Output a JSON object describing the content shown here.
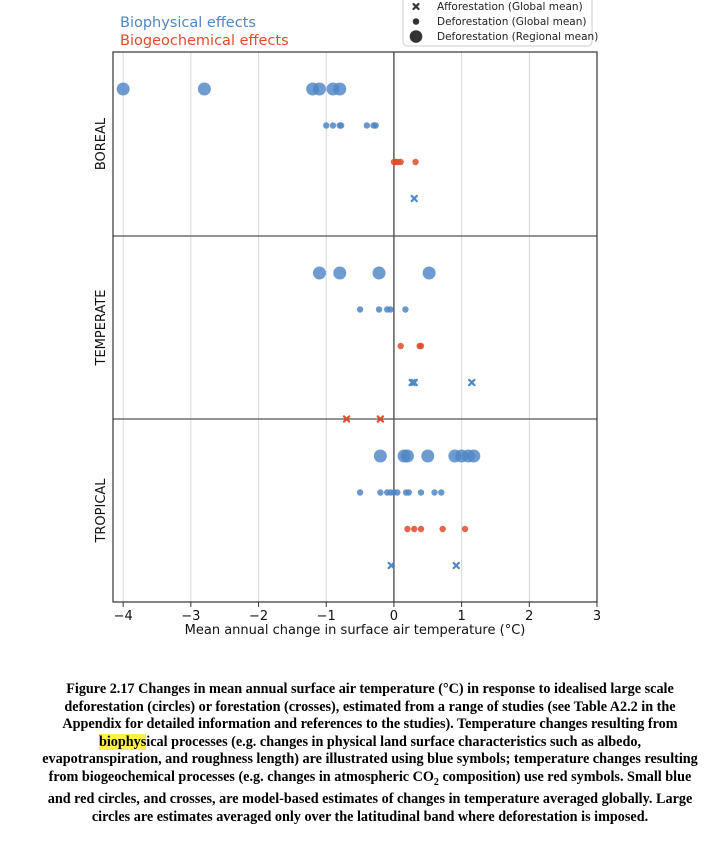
{
  "legend_text": {
    "biophysical": "Biophysical effects",
    "biogeochemical": "Biogeochemical effects"
  },
  "colors": {
    "biophysical": "#4f86c6",
    "biogeochemical": "#e04b2c"
  },
  "chart_data": {
    "type": "scatter",
    "xlabel": "Mean annual change in surface air temperature (°C)",
    "ylabel": "",
    "xlim": [
      -4.15,
      3
    ],
    "xticks": [
      -4,
      -3,
      -2,
      -1,
      0,
      1,
      2,
      3
    ],
    "xtick_labels": [
      "−4",
      "−3",
      "−2",
      "−1",
      "0",
      "1",
      "2",
      "3"
    ],
    "grid": "vertical",
    "legend_placement": "top-right",
    "legend": [
      {
        "marker": "cross",
        "label": "Afforestation (Global mean)"
      },
      {
        "marker": "small-circle",
        "label": "Deforestation (Global mean)"
      },
      {
        "marker": "large-circle",
        "label": "Deforestation (Regional mean)"
      }
    ],
    "panels": [
      {
        "label": "BOREAL",
        "rows": [
          {
            "effect": "biophysical",
            "marker": "large-circle",
            "x": [
              -4.0,
              -2.8,
              -1.2,
              -1.1,
              -0.9,
              -0.8
            ]
          },
          {
            "effect": "biophysical",
            "marker": "small-circle",
            "x": [
              -1.0,
              -0.9,
              -0.8,
              -0.78,
              -0.4,
              -0.3,
              -0.27
            ]
          },
          {
            "effect": "biogeochemical",
            "marker": "small-circle",
            "x": [
              0.0,
              0.03,
              0.06,
              0.1,
              0.32
            ]
          },
          {
            "effect": "biophysical",
            "marker": "cross",
            "x": [
              0.3
            ]
          }
        ]
      },
      {
        "label": "TEMPERATE",
        "rows": [
          {
            "effect": "biophysical",
            "marker": "large-circle",
            "x": [
              -1.1,
              -0.8,
              -0.22,
              0.52
            ]
          },
          {
            "effect": "biophysical",
            "marker": "small-circle",
            "x": [
              -0.5,
              -0.22,
              -0.1,
              -0.05,
              0.17
            ]
          },
          {
            "effect": "biogeochemical",
            "marker": "small-circle",
            "x": [
              0.1,
              0.38,
              0.4
            ]
          },
          {
            "effect": "biophysical",
            "marker": "cross",
            "x": [
              0.27,
              0.3,
              1.15
            ]
          },
          {
            "effect": "biogeochemical",
            "marker": "cross",
            "x": [
              -0.7,
              -0.2
            ]
          }
        ]
      },
      {
        "label": "TROPICAL",
        "rows": [
          {
            "effect": "biophysical",
            "marker": "large-circle",
            "x": [
              -0.2,
              0.15,
              0.2,
              0.5,
              0.9,
              1.0,
              1.1,
              1.18
            ]
          },
          {
            "effect": "biophysical",
            "marker": "small-circle",
            "x": [
              -0.5,
              -0.2,
              -0.1,
              -0.05,
              0.0,
              0.05,
              0.18,
              0.22,
              0.4,
              0.6,
              0.7
            ]
          },
          {
            "effect": "biogeochemical",
            "marker": "small-circle",
            "x": [
              0.2,
              0.3,
              0.4,
              0.72,
              1.05
            ]
          },
          {
            "effect": "biophysical",
            "marker": "cross",
            "x": [
              -0.04,
              0.92
            ]
          }
        ]
      }
    ]
  },
  "caption": {
    "part1": "Figure 2.17 Changes in mean annual surface air temperature (°C) in response to idealised large scale deforestation (circles) or forestation (crosses), estimated from a range of studies (see Table A2.2 in the Appendix for detailed information and references to the studies). Temperature changes resulting from ",
    "highlight": "biophys",
    "part2": "ical processes (e.g. changes in physical land surface characteristics such as albedo, evapotranspiration, and roughness length) are illustrated using blue symbols; temperature changes resulting from biogeochemical processes (e.g. changes in atmospheric CO",
    "sub": "2",
    "part3": " composition) use red symbols. Small blue and red circles, and crosses, are model-based estimates of changes in temperature averaged globally. Large circles are estimates averaged only over the latitudinal band where deforestation is imposed."
  }
}
